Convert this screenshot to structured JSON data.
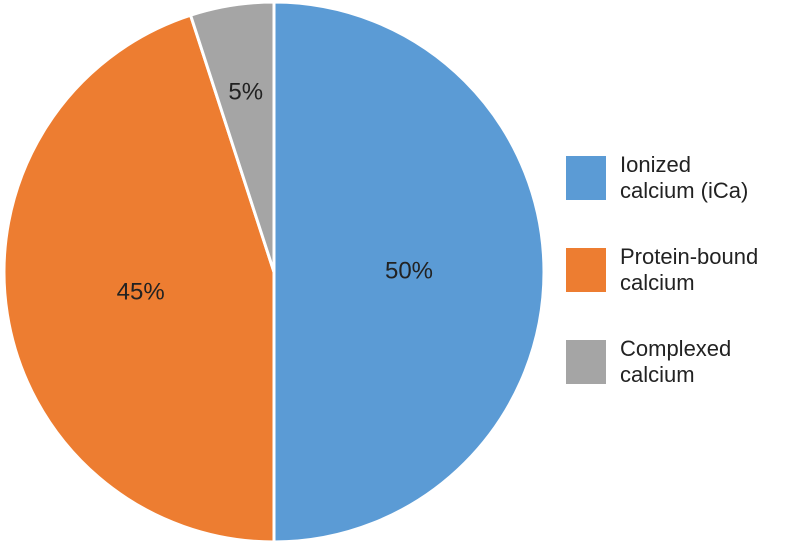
{
  "chart_data": {
    "type": "pie",
    "categories": [
      "Ionized calcium (iCa)",
      "Protein-bound calcium",
      "Complexed calcium"
    ],
    "values": [
      50,
      45,
      5
    ],
    "value_labels": [
      "50%",
      "45%",
      "5%"
    ],
    "colors": [
      "#5b9bd5",
      "#ed7d31",
      "#a5a5a5"
    ],
    "legend": "right"
  }
}
